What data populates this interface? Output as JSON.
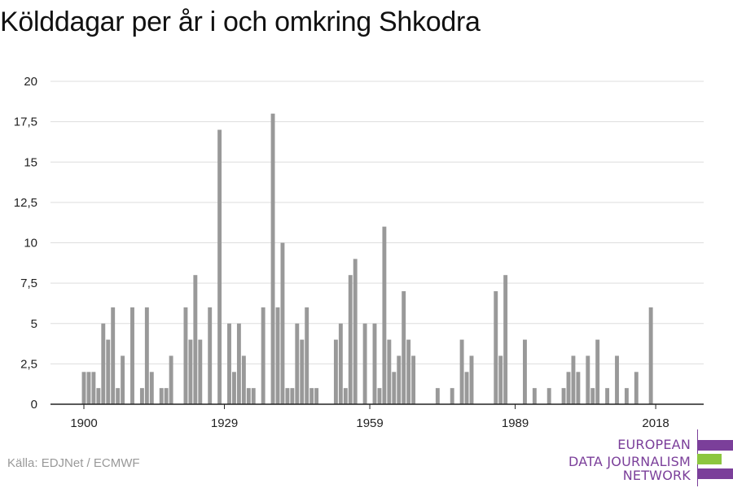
{
  "title": "Kölddagar per år i och omkring Shkodra",
  "source": "Källa: EDJNet / ECMWF",
  "logo": {
    "lines": [
      "EUROPEAN",
      "DATA JOURNALISM",
      "NETWORK"
    ],
    "colors": {
      "purple": "#7b3f9a",
      "green": "#8cc63f"
    }
  },
  "colors": {
    "bar": "#999999",
    "grid": "#dddddd",
    "axis": "#222222"
  },
  "chart_data": {
    "type": "bar",
    "title": "Kölddagar per år i och omkring Shkodra",
    "xlabel": "",
    "ylabel": "",
    "ylim": [
      0,
      20
    ],
    "y_ticks": [
      "0",
      "2,5",
      "5",
      "7,5",
      "10",
      "12,5",
      "15",
      "17,5",
      "20"
    ],
    "x_ticks": [
      "1900",
      "1929",
      "1959",
      "1989",
      "2018"
    ],
    "grid": true,
    "x": [
      1900,
      1901,
      1902,
      1903,
      1904,
      1905,
      1906,
      1907,
      1908,
      1909,
      1910,
      1911,
      1912,
      1913,
      1914,
      1915,
      1916,
      1917,
      1918,
      1919,
      1920,
      1921,
      1922,
      1923,
      1924,
      1925,
      1926,
      1927,
      1928,
      1929,
      1930,
      1931,
      1932,
      1933,
      1934,
      1935,
      1936,
      1937,
      1938,
      1939,
      1940,
      1941,
      1942,
      1943,
      1944,
      1945,
      1946,
      1947,
      1948,
      1949,
      1950,
      1951,
      1952,
      1953,
      1954,
      1955,
      1956,
      1957,
      1958,
      1959,
      1960,
      1961,
      1962,
      1963,
      1964,
      1965,
      1966,
      1967,
      1968,
      1969,
      1970,
      1971,
      1972,
      1973,
      1974,
      1975,
      1976,
      1977,
      1978,
      1979,
      1980,
      1981,
      1982,
      1983,
      1984,
      1985,
      1986,
      1987,
      1988,
      1989,
      1990,
      1991,
      1992,
      1993,
      1994,
      1995,
      1996,
      1997,
      1998,
      1999,
      2000,
      2001,
      2002,
      2003,
      2004,
      2005,
      2006,
      2007,
      2008,
      2009,
      2010,
      2011,
      2012,
      2013,
      2014,
      2015,
      2016,
      2017,
      2018
    ],
    "values": [
      2,
      2,
      2,
      1,
      5,
      4,
      6,
      1,
      3,
      0,
      6,
      0,
      1,
      6,
      2,
      0,
      1,
      1,
      3,
      0,
      0,
      6,
      4,
      8,
      4,
      0,
      6,
      0,
      17,
      0,
      5,
      2,
      5,
      3,
      1,
      1,
      0,
      6,
      0,
      18,
      6,
      10,
      1,
      1,
      5,
      4,
      6,
      1,
      1,
      0,
      0,
      0,
      4,
      5,
      1,
      8,
      9,
      0,
      5,
      0,
      5,
      1,
      11,
      4,
      2,
      3,
      7,
      4,
      3,
      0,
      0,
      0,
      0,
      1,
      0,
      0,
      1,
      0,
      4,
      2,
      3,
      0,
      0,
      0,
      0,
      7,
      3,
      8,
      0,
      0,
      0,
      4,
      0,
      1,
      0,
      0,
      1,
      0,
      0,
      1,
      2,
      3,
      2,
      0,
      3,
      1,
      4,
      0,
      1,
      0,
      3,
      0,
      1,
      0,
      2,
      0,
      0,
      6,
      0
    ]
  }
}
